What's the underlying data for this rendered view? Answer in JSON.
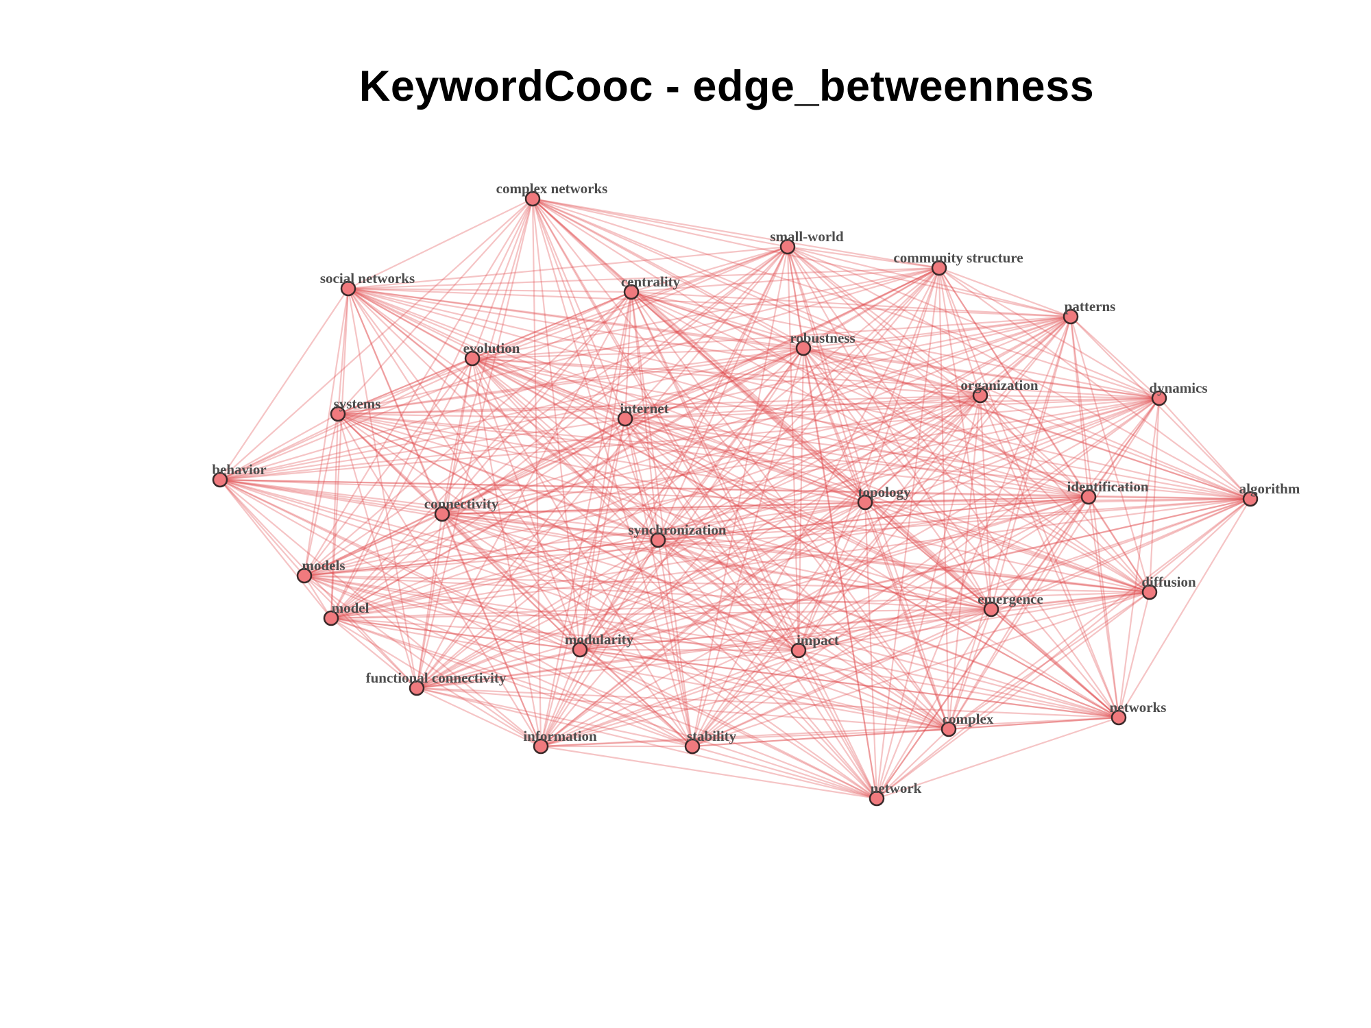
{
  "title": "KeywordCooc  - edge_betweenness",
  "colors": {
    "edge": "#e0474c",
    "node_fill": "#f07a7e",
    "node_stroke": "#3a2a2a",
    "label": "#4d4d4d"
  },
  "nodes": [
    {
      "id": "complex networks",
      "label": "complex networks"
    },
    {
      "id": "small-world",
      "label": "small-world"
    },
    {
      "id": "community structure",
      "label": "community structure"
    },
    {
      "id": "social networks",
      "label": "social networks"
    },
    {
      "id": "centrality",
      "label": "centrality"
    },
    {
      "id": "patterns",
      "label": "patterns"
    },
    {
      "id": "robustness",
      "label": "robustness"
    },
    {
      "id": "evolution",
      "label": "evolution"
    },
    {
      "id": "organization",
      "label": "organization"
    },
    {
      "id": "dynamics",
      "label": "dynamics"
    },
    {
      "id": "systems",
      "label": "systems"
    },
    {
      "id": "internet",
      "label": "internet"
    },
    {
      "id": "behavior",
      "label": "behavior"
    },
    {
      "id": "topology",
      "label": "topology"
    },
    {
      "id": "identification",
      "label": "identification"
    },
    {
      "id": "algorithm",
      "label": "algorithm"
    },
    {
      "id": "connectivity",
      "label": "connectivity"
    },
    {
      "id": "synchronization",
      "label": "synchronization"
    },
    {
      "id": "models",
      "label": "models"
    },
    {
      "id": "diffusion",
      "label": "diffusion"
    },
    {
      "id": "emergence",
      "label": "emergence"
    },
    {
      "id": "model",
      "label": "model"
    },
    {
      "id": "modularity",
      "label": "modularity"
    },
    {
      "id": "impact",
      "label": "impact"
    },
    {
      "id": "functional connectivity",
      "label": "functional connectivity"
    },
    {
      "id": "networks",
      "label": "networks"
    },
    {
      "id": "complex",
      "label": "complex"
    },
    {
      "id": "information",
      "label": "information"
    },
    {
      "id": "stability",
      "label": "stability"
    },
    {
      "id": "network",
      "label": "network"
    }
  ],
  "edges": "complete"
}
